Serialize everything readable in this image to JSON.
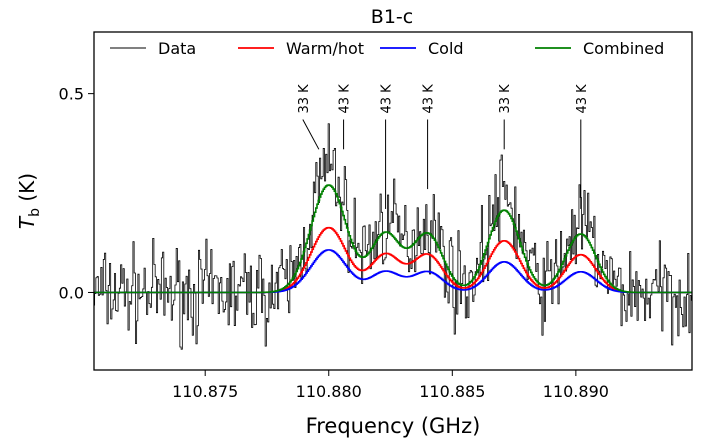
{
  "chart_data": {
    "type": "line",
    "title": "B1-c",
    "xlabel": "Frequency (GHz)",
    "ylabel_main": "T",
    "ylabel_sub": "b",
    "ylabel_unit": " (K)",
    "xlim": [
      110.8705,
      110.8947
    ],
    "ylim": [
      -0.195,
      0.655
    ],
    "xticks": [
      110.875,
      110.88,
      110.885,
      110.89
    ],
    "xtick_labels": [
      "110.875",
      "110.880",
      "110.885",
      "110.890"
    ],
    "yticks": [
      0.0,
      0.5
    ],
    "ytick_labels": [
      "0.0",
      "0.5"
    ],
    "legend_position": "top",
    "grid": false,
    "series": [
      {
        "name": "Data",
        "color": "#000000",
        "style": "step-noisy"
      },
      {
        "name": "Warm/hot",
        "color": "#ff0000",
        "style": "step"
      },
      {
        "name": "Cold",
        "color": "#0000ff",
        "style": "step"
      },
      {
        "name": "Combined",
        "color": "#008000",
        "style": "step"
      }
    ],
    "lines": [
      {
        "center": 110.884,
        "warm": 0.095,
        "cold": 0.052,
        "width": 0.00062
      },
      {
        "center": 110.88,
        "warm": 0.163,
        "cold": 0.107,
        "width": 0.00072
      },
      {
        "center": 110.8823,
        "warm": 0.095,
        "cold": 0.052,
        "width": 0.0006
      },
      {
        "center": 110.8871,
        "warm": 0.13,
        "cold": 0.077,
        "width": 0.00065
      },
      {
        "center": 110.8902,
        "warm": 0.095,
        "cold": 0.052,
        "width": 0.00062
      }
    ],
    "annotations": [
      {
        "label": "43 K",
        "x": 110.884,
        "y_top": 0.435,
        "y_bottom": 0.26,
        "tilt": 0
      },
      {
        "label": "33 K",
        "x": 110.8796,
        "y_top": 0.435,
        "y_bottom": 0.36,
        "tilt": -0.00065
      },
      {
        "label": "43 K",
        "x": 110.8806,
        "y_top": 0.435,
        "y_bottom": 0.36,
        "tilt": 0
      },
      {
        "label": "43 K",
        "x": 110.8823,
        "y_top": 0.435,
        "y_bottom": 0.21,
        "tilt": 0
      },
      {
        "label": "33 K",
        "x": 110.8871,
        "y_top": 0.435,
        "y_bottom": 0.36,
        "tilt": 0
      },
      {
        "label": "43 K",
        "x": 110.8902,
        "y_top": 0.435,
        "y_bottom": 0.21,
        "tilt": 0
      }
    ]
  }
}
